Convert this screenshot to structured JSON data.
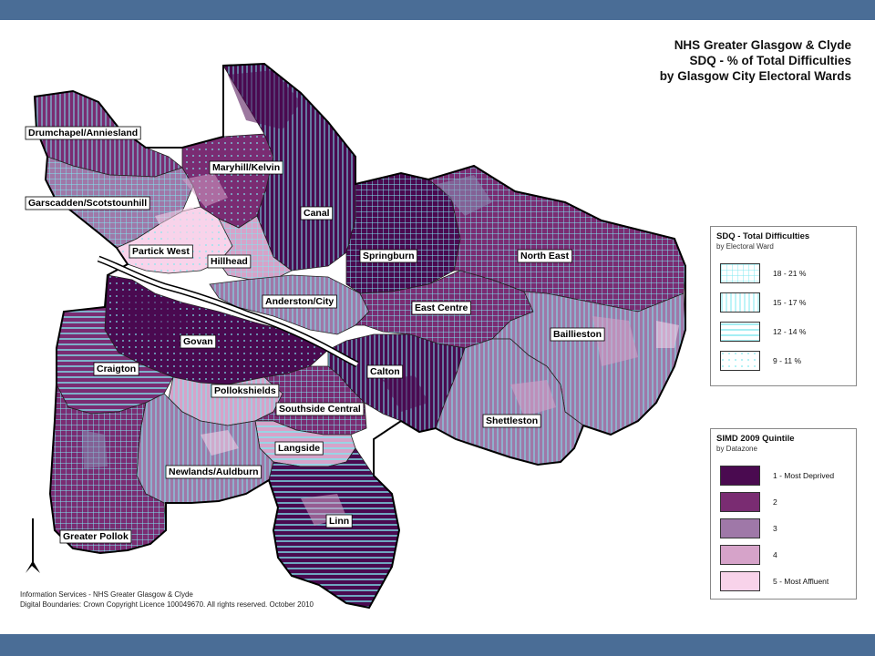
{
  "title": {
    "line1": "NHS Greater Glasgow & Clyde",
    "line2": "SDQ - % of Total Difficulties",
    "line3": "by Glasgow City Electoral Wards"
  },
  "wards": [
    {
      "name": "Drumchapel/Anniesland",
      "pattern": "vert",
      "base": "q2"
    },
    {
      "name": "Garscadden/Scotstounhill",
      "pattern": "grid",
      "base": "q3"
    },
    {
      "name": "Maryhill/Kelvin",
      "pattern": "dots",
      "base": "q2"
    },
    {
      "name": "Canal",
      "pattern": "vert",
      "base": "q1"
    },
    {
      "name": "Partick West",
      "pattern": "dots",
      "base": "q5"
    },
    {
      "name": "Hillhead",
      "pattern": "grid",
      "base": "q4"
    },
    {
      "name": "Springburn",
      "pattern": "grid",
      "base": "q1"
    },
    {
      "name": "North East",
      "pattern": "grid",
      "base": "q2"
    },
    {
      "name": "Anderston/City",
      "pattern": "vert",
      "base": "q3"
    },
    {
      "name": "East Centre",
      "pattern": "grid",
      "base": "q2"
    },
    {
      "name": "Govan",
      "pattern": "dots",
      "base": "q1"
    },
    {
      "name": "Baillieston",
      "pattern": "vert",
      "base": "q3"
    },
    {
      "name": "Craigton",
      "pattern": "horiz",
      "base": "q2"
    },
    {
      "name": "Calton",
      "pattern": "vert",
      "base": "q1"
    },
    {
      "name": "Pollokshields",
      "pattern": "vert",
      "base": "q4"
    },
    {
      "name": "Southside Central",
      "pattern": "grid",
      "base": "q2"
    },
    {
      "name": "Shettleston",
      "pattern": "vert",
      "base": "q3"
    },
    {
      "name": "Langside",
      "pattern": "horiz",
      "base": "q4"
    },
    {
      "name": "Newlands/Auldburn",
      "pattern": "vert",
      "base": "q3"
    },
    {
      "name": "Linn",
      "pattern": "horiz",
      "base": "q1"
    },
    {
      "name": "Greater Pollok",
      "pattern": "grid",
      "base": "q2"
    }
  ],
  "legend_sdq": {
    "title": "SDQ -  Total Difficulties",
    "subtitle": "by Electoral Ward",
    "items": [
      {
        "label": "18 - 21 %",
        "pattern": "grid"
      },
      {
        "label": "15 - 17 %",
        "pattern": "vert"
      },
      {
        "label": "12 - 14 %",
        "pattern": "horiz"
      },
      {
        "label": "9 - 11 %",
        "pattern": "dots"
      }
    ]
  },
  "legend_simd": {
    "title": "SIMD 2009 Quintile",
    "subtitle": "by Datazone",
    "items": [
      {
        "label": "1 - Most Deprived",
        "color": "#4a0a50"
      },
      {
        "label": "2",
        "color": "#7a2c72"
      },
      {
        "label": "3",
        "color": "#9f78a8"
      },
      {
        "label": "4",
        "color": "#d6a3c9"
      },
      {
        "label": "5 - Most Affluent",
        "color": "#f8d3ea"
      }
    ]
  },
  "colors": {
    "band": "#4a6d96",
    "q1": "#4a0a50",
    "q2": "#7a2c72",
    "q3": "#9f78a8",
    "q4": "#d6a3c9",
    "q5": "#f8d3ea",
    "q3b": "#8a8fb5",
    "hatch": "#7fe8f0"
  },
  "north_arrow": "north-arrow",
  "credits": {
    "line1": "Information Services - NHS Greater Glasgow & Clyde",
    "line2": "Digital Boundaries: Crown Copyright Licence 100049670.  All rights reserved. October 2010"
  }
}
